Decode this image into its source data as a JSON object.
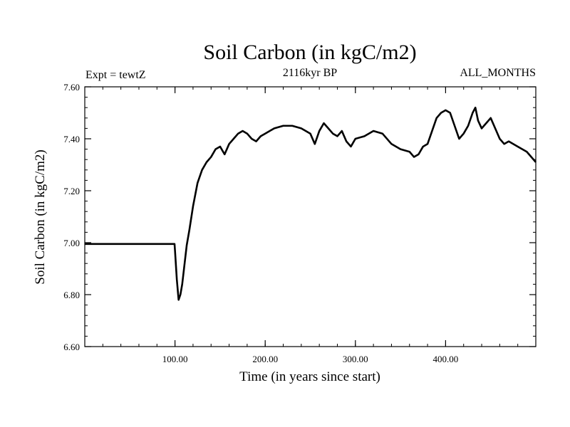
{
  "chart_data": {
    "type": "line",
    "title": "Soil Carbon (in kgC/m2)",
    "subtitle_left": "Expt = tewtZ",
    "subtitle_center": "2116kyr BP",
    "subtitle_right": "ALL_MONTHS",
    "xlabel": "Time (in years since start)",
    "ylabel": "Soil Carbon (in kgC/m2)",
    "xlim": [
      0,
      500
    ],
    "ylim": [
      6.6,
      7.6
    ],
    "x_ticks": [
      100,
      200,
      300,
      400
    ],
    "x_tick_labels": [
      "100.00",
      "200.00",
      "300.00",
      "400.00"
    ],
    "y_ticks": [
      6.6,
      6.8,
      7.0,
      7.2,
      7.4,
      7.6
    ],
    "y_tick_labels": [
      "6.60",
      "6.80",
      "7.00",
      "7.20",
      "7.40",
      "7.60"
    ],
    "grid": false,
    "line_color": "#000000",
    "series": [
      {
        "x": [
          0,
          50,
          99.5,
          100,
          102,
          104,
          106,
          108,
          110,
          113,
          116,
          120,
          125,
          130,
          135,
          140,
          145,
          150,
          155,
          160,
          165,
          170,
          175,
          180,
          185,
          190,
          195,
          200,
          210,
          220,
          230,
          240,
          250,
          255,
          260,
          265,
          270,
          275,
          280,
          285,
          290,
          295,
          300,
          310,
          320,
          330,
          340,
          350,
          360,
          365,
          370,
          375,
          380,
          385,
          390,
          395,
          400,
          405,
          410,
          415,
          420,
          425,
          430,
          433,
          436,
          440,
          445,
          450,
          455,
          460,
          465,
          470,
          480,
          490,
          500
        ],
        "y": [
          6.995,
          6.995,
          6.995,
          6.97,
          6.86,
          6.78,
          6.8,
          6.84,
          6.9,
          6.99,
          7.05,
          7.14,
          7.23,
          7.28,
          7.31,
          7.33,
          7.36,
          7.37,
          7.34,
          7.38,
          7.4,
          7.42,
          7.43,
          7.42,
          7.4,
          7.39,
          7.41,
          7.42,
          7.44,
          7.45,
          7.45,
          7.44,
          7.42,
          7.38,
          7.43,
          7.46,
          7.44,
          7.42,
          7.41,
          7.43,
          7.39,
          7.37,
          7.4,
          7.41,
          7.43,
          7.42,
          7.38,
          7.36,
          7.35,
          7.33,
          7.34,
          7.37,
          7.38,
          7.43,
          7.48,
          7.5,
          7.51,
          7.5,
          7.45,
          7.4,
          7.42,
          7.45,
          7.5,
          7.52,
          7.47,
          7.44,
          7.46,
          7.48,
          7.44,
          7.4,
          7.38,
          7.39,
          7.37,
          7.35,
          7.31
        ]
      }
    ]
  }
}
